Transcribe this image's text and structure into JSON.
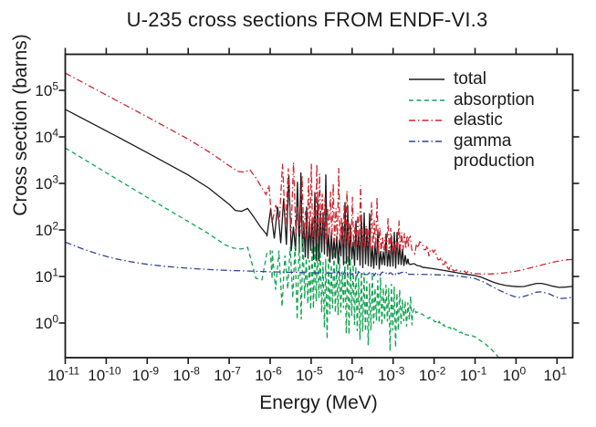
{
  "chart_data": {
    "type": "line",
    "title": "U-235 cross sections FROM ENDF-VI.3",
    "xlabel": "Energy (MeV)",
    "ylabel": "Cross section (barns)",
    "xscale": "log",
    "yscale": "log",
    "xlim": [
      "1e-11",
      "2.5e1"
    ],
    "ylim": [
      "1.8e-1",
      "5.8e5"
    ],
    "x_tick_exponents": [
      -11,
      -10,
      -9,
      -8,
      -7,
      -6,
      -5,
      -4,
      -3,
      -2,
      -1,
      0,
      1
    ],
    "y_tick_exponents": [
      0,
      1,
      2,
      3,
      4,
      5
    ],
    "tick_base": "10",
    "grid": "off",
    "tick_style": "outward-all-four-sides",
    "background": "#ffffff",
    "axis_color": "#1a1a1a",
    "legend": {
      "position": "top-right-inside",
      "items": [
        {
          "label": "total",
          "color": "#1a1a1a",
          "dash": "solid"
        },
        {
          "label": "absorption",
          "color": "#12a352",
          "dash": "dash"
        },
        {
          "label": "elastic",
          "color": "#cc2631",
          "dash": "chain"
        },
        {
          "label": "gamma",
          "label2": "production",
          "color": "#31439b",
          "dash": "chain"
        }
      ]
    },
    "series": [
      {
        "name": "total",
        "color": "#1a1a1a",
        "dash": "solid",
        "width": 1.3,
        "segments": [
          {
            "kind": "poly",
            "pts": [
              [
                -11,
                4.59
              ],
              [
                -10,
                4.13
              ],
              [
                -9,
                3.66
              ],
              [
                -8,
                3.18
              ],
              [
                -7.5,
                2.9
              ],
              [
                -7.0,
                2.55
              ],
              [
                -6.85,
                2.42
              ],
              [
                -6.7,
                2.4
              ],
              [
                -6.55,
                2.46
              ],
              [
                -6.4,
                2.28
              ],
              [
                -6.25,
                2.08
              ],
              [
                -6.12,
                1.94
              ],
              [
                -6.08,
                1.9
              ]
            ]
          },
          {
            "kind": "forest",
            "x0": -6.08,
            "x1": -2.62,
            "s0": 4.2,
            "s1": 1.5,
            "seed": 101,
            "base": [
              [
                -6.08,
                1.85
              ],
              [
                -5.9,
                1.75
              ],
              [
                -5.5,
                1.5
              ],
              [
                -5.0,
                1.35
              ],
              [
                -4.5,
                1.25
              ],
              [
                -4.0,
                1.18
              ],
              [
                -3.5,
                1.14
              ],
              [
                -3.0,
                1.13
              ],
              [
                -2.62,
                1.25
              ]
            ],
            "peak": [
              [
                -6.08,
                2.5
              ],
              [
                -5.6,
                3.2
              ],
              [
                -5.1,
                3.6
              ],
              [
                -4.7,
                3.4
              ],
              [
                -4.2,
                3.0
              ],
              [
                -3.7,
                2.6
              ],
              [
                -3.2,
                2.3
              ],
              [
                -2.9,
                2.05
              ],
              [
                -2.62,
                1.6
              ]
            ]
          },
          {
            "kind": "noise",
            "x0": -2.62,
            "x1": -2.25,
            "s": 1.8,
            "seed": 102,
            "amp0": 0.05,
            "amp1": 0.015,
            "center": [
              [
                -2.62,
                1.26
              ],
              [
                -2.4,
                1.22
              ],
              [
                -2.25,
                1.2
              ]
            ]
          },
          {
            "kind": "poly",
            "pts": [
              [
                -2.25,
                1.195
              ],
              [
                -2.0,
                1.165
              ],
              [
                -1.7,
                1.12
              ],
              [
                -1.45,
                1.08
              ],
              [
                -1.2,
                1.045
              ],
              [
                -1.0,
                1.02
              ],
              [
                -0.85,
                0.985
              ],
              [
                -0.7,
                0.93
              ],
              [
                -0.55,
                0.875
              ],
              [
                -0.4,
                0.835
              ],
              [
                -0.25,
                0.805
              ],
              [
                -0.1,
                0.79
              ],
              [
                0.05,
                0.78
              ],
              [
                0.2,
                0.785
              ],
              [
                0.35,
                0.82
              ],
              [
                0.5,
                0.85
              ],
              [
                0.62,
                0.85
              ],
              [
                0.75,
                0.825
              ],
              [
                0.9,
                0.79
              ],
              [
                1.05,
                0.765
              ],
              [
                1.2,
                0.77
              ],
              [
                1.35,
                0.785
              ],
              [
                1.42,
                0.79
              ]
            ]
          }
        ]
      },
      {
        "name": "absorption",
        "color": "#12a352",
        "dash": "dash",
        "width": 1.3,
        "segments": [
          {
            "kind": "poly",
            "pts": [
              [
                -11,
                3.76
              ],
              [
                -10,
                3.23
              ],
              [
                -9,
                2.7
              ],
              [
                -8,
                2.18
              ],
              [
                -7.5,
                1.92
              ],
              [
                -7.1,
                1.68
              ],
              [
                -6.9,
                1.61
              ],
              [
                -6.7,
                1.59
              ],
              [
                -6.55,
                1.63
              ],
              [
                -6.45,
                1.3
              ],
              [
                -6.35,
                0.96
              ],
              [
                -6.2,
                0.93
              ],
              [
                -6.08,
                1.5
              ],
              [
                -6.0,
                1.55
              ],
              [
                -5.95,
                0.95
              ]
            ]
          },
          {
            "kind": "band",
            "x0": -5.95,
            "x1": -2.52,
            "s0": 3.8,
            "s1": 1.5,
            "seed": 201,
            "center": [
              [
                -5.95,
                1.2
              ],
              [
                -5.5,
                1.18
              ],
              [
                -5.0,
                1.05
              ],
              [
                -4.5,
                0.92
              ],
              [
                -4.0,
                0.78
              ],
              [
                -3.5,
                0.58
              ],
              [
                -3.0,
                0.44
              ],
              [
                -2.52,
                0.3
              ]
            ],
            "up": [
              [
                -5.95,
                1.8
              ],
              [
                -5.5,
                1.95
              ],
              [
                -5.0,
                1.85
              ],
              [
                -4.5,
                1.7
              ],
              [
                -4.0,
                1.45
              ],
              [
                -3.5,
                1.1
              ],
              [
                -3.0,
                0.9
              ],
              [
                -2.52,
                0.55
              ]
            ],
            "down": [
              [
                -5.95,
                0.45
              ],
              [
                -5.5,
                0.05
              ],
              [
                -5.0,
                -0.2
              ],
              [
                -4.5,
                -0.42
              ],
              [
                -4.0,
                -0.58
              ],
              [
                -3.5,
                -0.7
              ],
              [
                -3.0,
                -0.62
              ],
              [
                -2.52,
                -0.12
              ]
            ]
          },
          {
            "kind": "noise",
            "x0": -2.52,
            "x1": -0.95,
            "s": 1.7,
            "seed": 202,
            "amp0": 0.06,
            "amp1": 0.015,
            "center": [
              [
                -2.52,
                0.28
              ],
              [
                -2.2,
                0.16
              ],
              [
                -2.0,
                0.05
              ],
              [
                -1.75,
                -0.06
              ],
              [
                -1.5,
                -0.15
              ],
              [
                -1.25,
                -0.23
              ],
              [
                -0.95,
                -0.32
              ]
            ]
          },
          {
            "kind": "poly",
            "pts": [
              [
                -0.95,
                -0.33
              ],
              [
                -0.75,
                -0.45
              ],
              [
                -0.6,
                -0.57
              ],
              [
                -0.48,
                -0.68
              ],
              [
                -0.38,
                -0.8
              ],
              [
                -0.3,
                -0.9
              ]
            ]
          }
        ]
      },
      {
        "name": "elastic",
        "color": "#cc2631",
        "dash": "chain",
        "width": 1.3,
        "segments": [
          {
            "kind": "poly",
            "pts": [
              [
                -11,
                5.37
              ],
              [
                -10,
                4.9
              ],
              [
                -9,
                4.43
              ],
              [
                -8,
                3.95
              ],
              [
                -7.5,
                3.68
              ],
              [
                -7.0,
                3.38
              ],
              [
                -6.8,
                3.26
              ],
              [
                -6.62,
                3.24
              ],
              [
                -6.5,
                3.3
              ],
              [
                -6.35,
                3.12
              ],
              [
                -6.2,
                2.9
              ],
              [
                -6.1,
                2.76
              ],
              [
                -6.03,
                2.96
              ],
              [
                -5.96,
                2.16
              ]
            ]
          },
          {
            "kind": "forest",
            "x0": -5.95,
            "x1": -2.62,
            "s0": 4.0,
            "s1": 1.5,
            "seed": 301,
            "base": [
              [
                -5.95,
                2.1
              ],
              [
                -5.5,
                1.9
              ],
              [
                -5.0,
                1.75
              ],
              [
                -4.5,
                1.65
              ],
              [
                -4.0,
                1.58
              ],
              [
                -3.5,
                1.5
              ],
              [
                -3.0,
                1.45
              ],
              [
                -2.62,
                1.6
              ]
            ],
            "peak": [
              [
                -5.95,
                3.1
              ],
              [
                -5.6,
                3.55
              ],
              [
                -5.1,
                3.85
              ],
              [
                -4.6,
                3.7
              ],
              [
                -4.2,
                3.4
              ],
              [
                -3.7,
                3.0
              ],
              [
                -3.2,
                2.6
              ],
              [
                -2.9,
                2.3
              ],
              [
                -2.62,
                2.0
              ]
            ]
          },
          {
            "kind": "noise",
            "x0": -2.62,
            "x1": -1.05,
            "s": 1.7,
            "seed": 302,
            "amp0": 0.18,
            "amp1": 0.015,
            "center": [
              [
                -2.62,
                1.7
              ],
              [
                -2.3,
                1.6
              ],
              [
                -2.0,
                1.5
              ],
              [
                -1.8,
                1.34
              ],
              [
                -1.6,
                1.19
              ],
              [
                -1.4,
                1.11
              ],
              [
                -1.2,
                1.075
              ],
              [
                -1.05,
                1.065
              ]
            ]
          },
          {
            "kind": "poly",
            "pts": [
              [
                -1.05,
                1.062
              ],
              [
                -0.85,
                1.055
              ],
              [
                -0.65,
                1.052
              ],
              [
                -0.45,
                1.06
              ],
              [
                -0.25,
                1.08
              ],
              [
                -0.05,
                1.105
              ],
              [
                0.15,
                1.14
              ],
              [
                0.35,
                1.185
              ],
              [
                0.55,
                1.23
              ],
              [
                0.75,
                1.275
              ],
              [
                0.95,
                1.315
              ],
              [
                1.1,
                1.34
              ],
              [
                1.25,
                1.358
              ],
              [
                1.42,
                1.368
              ]
            ]
          }
        ]
      },
      {
        "name": "gamma production",
        "color": "#31439b",
        "dash": "chain",
        "width": 1.3,
        "segments": [
          {
            "kind": "poly",
            "pts": [
              [
                -11,
                1.74
              ],
              [
                -10.6,
                1.6
              ],
              [
                -10.2,
                1.48
              ],
              [
                -9.8,
                1.385
              ],
              [
                -9.4,
                1.315
              ],
              [
                -9.0,
                1.26
              ],
              [
                -8.6,
                1.22
              ],
              [
                -8.2,
                1.19
              ],
              [
                -7.8,
                1.165
              ],
              [
                -7.4,
                1.145
              ],
              [
                -7.0,
                1.13
              ],
              [
                -6.5,
                1.115
              ],
              [
                -6.0,
                1.1
              ],
              [
                -5.5,
                1.09
              ],
              [
                -5.0,
                1.08
              ],
              [
                -4.45,
                1.072
              ]
            ]
          },
          {
            "kind": "noise",
            "x0": -4.45,
            "x1": -2.62,
            "s": 1.7,
            "seed": 401,
            "amp0": 0.05,
            "amp1": 0.05,
            "center": [
              [
                -4.45,
                1.07
              ],
              [
                -3.5,
                1.06
              ],
              [
                -2.62,
                1.05
              ]
            ]
          },
          {
            "kind": "poly",
            "pts": [
              [
                -2.62,
                1.048
              ],
              [
                -2.1,
                1.042
              ],
              [
                -1.7,
                1.03
              ],
              [
                -1.4,
                1.008
              ],
              [
                -1.15,
                0.978
              ],
              [
                -1.0,
                0.955
              ],
              [
                -0.8,
                0.885
              ],
              [
                -0.6,
                0.79
              ],
              [
                -0.4,
                0.7
              ],
              [
                -0.22,
                0.63
              ],
              [
                -0.05,
                0.568
              ],
              [
                0.1,
                0.548
              ],
              [
                0.3,
                0.6
              ],
              [
                0.5,
                0.662
              ],
              [
                0.62,
                0.668
              ],
              [
                0.8,
                0.63
              ],
              [
                0.95,
                0.565
              ],
              [
                1.1,
                0.527
              ],
              [
                1.25,
                0.535
              ],
              [
                1.42,
                0.558
              ]
            ]
          }
        ]
      }
    ]
  }
}
